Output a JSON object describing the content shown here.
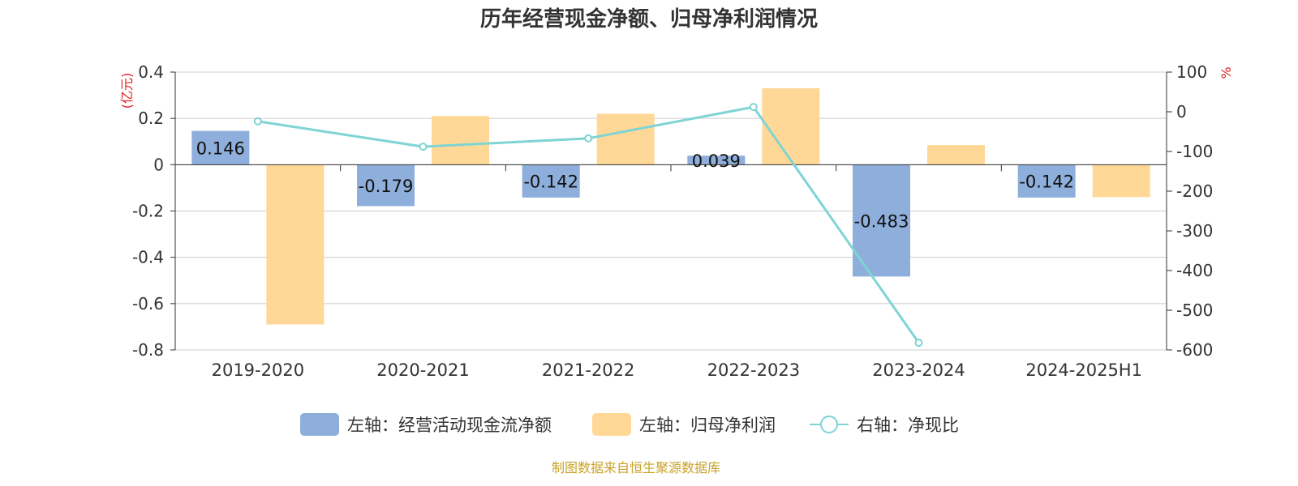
{
  "chart_data": {
    "type": "bar",
    "title": "历年经营现金净额、归母净利润情况",
    "categories": [
      "2019-2020",
      "2020-2021",
      "2021-2022",
      "2022-2023",
      "2023-2024",
      "2024-2025H1"
    ],
    "left_axis": {
      "unit": "(亿元)",
      "ylim": [
        -0.8,
        0.4
      ],
      "ticks": [
        "0.4",
        "0.2",
        "0",
        "-0.2",
        "-0.4",
        "-0.6",
        "-0.8"
      ]
    },
    "right_axis": {
      "unit": "%",
      "ylim": [
        -600,
        100
      ],
      "ticks": [
        "100",
        "0",
        "-100",
        "-200",
        "-300",
        "-400",
        "-500",
        "-600"
      ]
    },
    "series": [
      {
        "name": "左轴：经营活动现金流净额",
        "type": "bar",
        "axis": "left",
        "color": "#8eaedb",
        "values": [
          0.146,
          -0.179,
          -0.142,
          0.039,
          -0.483,
          -0.142
        ],
        "labels": [
          "0.146",
          "-0.179",
          "-0.142",
          "0.039",
          "-0.483",
          "-0.142"
        ]
      },
      {
        "name": "左轴：归母净利润",
        "type": "bar",
        "axis": "left",
        "color": "#ffd898",
        "values": [
          -0.69,
          0.21,
          0.22,
          0.33,
          0.085,
          -0.14
        ]
      },
      {
        "name": "右轴：净现比",
        "type": "line",
        "axis": "right",
        "color": "#7fd4d4",
        "values": [
          -24,
          -88,
          -67,
          12,
          -582,
          null
        ]
      }
    ],
    "grid": true,
    "legend_position": "bottom"
  },
  "source_note": "制图数据来自恒生聚源数据库"
}
